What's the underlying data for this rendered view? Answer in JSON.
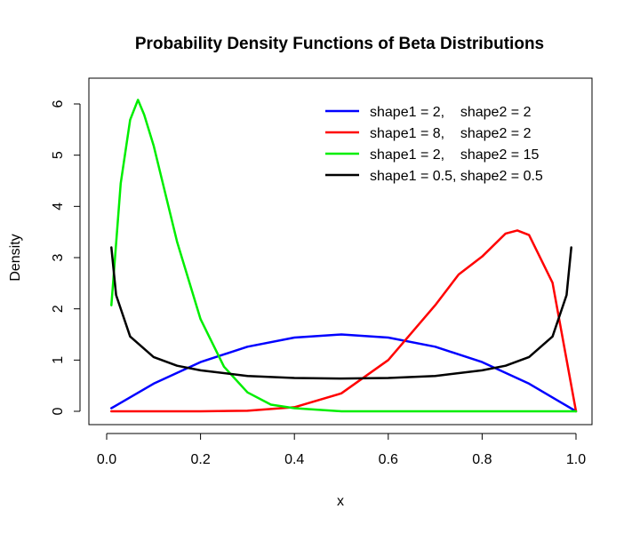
{
  "chart_data": {
    "type": "line",
    "title": "Probability Density Functions of Beta Distributions",
    "xlabel": "x",
    "ylabel": "Density",
    "xlim": [
      0,
      1
    ],
    "ylim": [
      0,
      6.2
    ],
    "x_ticks": [
      "0.0",
      "0.2",
      "0.4",
      "0.6",
      "0.8",
      "1.0"
    ],
    "y_ticks": [
      "0",
      "1",
      "2",
      "3",
      "4",
      "5",
      "6"
    ],
    "grid": false,
    "legend_position": "top-right",
    "series": [
      {
        "name": "shape1 = 2,    shape2 = 2",
        "color": "#0000ff",
        "x": [
          0.01,
          0.1,
          0.2,
          0.3,
          0.4,
          0.5,
          0.6,
          0.7,
          0.8,
          0.9,
          1.0
        ],
        "y": [
          0.06,
          0.54,
          0.96,
          1.26,
          1.44,
          1.5,
          1.44,
          1.26,
          0.96,
          0.54,
          0.0
        ]
      },
      {
        "name": "shape1 = 8,    shape2 = 2",
        "color": "#ff0000",
        "x": [
          0.01,
          0.2,
          0.3,
          0.4,
          0.5,
          0.6,
          0.7,
          0.75,
          0.8,
          0.85,
          0.875,
          0.9,
          0.95,
          1.0
        ],
        "y": [
          0.0,
          0.0,
          0.01,
          0.08,
          0.35,
          1.0,
          2.07,
          2.67,
          3.02,
          3.47,
          3.53,
          3.44,
          2.51,
          0.0
        ]
      },
      {
        "name": "shape1 = 2,    shape2 = 15",
        "color": "#00ee00",
        "x": [
          0.01,
          0.03,
          0.05,
          0.0667,
          0.08,
          0.1,
          0.15,
          0.2,
          0.25,
          0.3,
          0.35,
          0.4,
          0.5,
          0.6,
          1.0
        ],
        "y": [
          2.07,
          4.45,
          5.69,
          6.08,
          5.79,
          5.19,
          3.31,
          1.8,
          0.87,
          0.37,
          0.13,
          0.06,
          0.0,
          0.0,
          0.0
        ]
      },
      {
        "name": "shape1 = 0.5, shape2 = 0.5",
        "color": "#000000",
        "x": [
          0.01,
          0.02,
          0.05,
          0.1,
          0.15,
          0.2,
          0.3,
          0.4,
          0.5,
          0.6,
          0.7,
          0.8,
          0.85,
          0.9,
          0.95,
          0.98,
          0.99
        ],
        "y": [
          3.2,
          2.27,
          1.46,
          1.06,
          0.89,
          0.8,
          0.69,
          0.65,
          0.64,
          0.65,
          0.69,
          0.8,
          0.89,
          1.06,
          1.46,
          2.27,
          3.2
        ]
      }
    ]
  }
}
